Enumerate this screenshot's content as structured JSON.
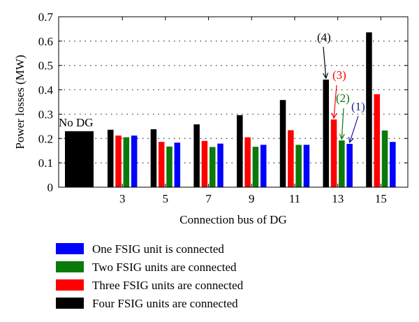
{
  "chart_data": {
    "type": "bar",
    "title": "",
    "xlabel": "Connection bus of DG",
    "ylabel": "Power losses (MW)",
    "ylim": [
      0,
      0.7
    ],
    "yticks": [
      "0",
      "0.1",
      "0.2",
      "0.3",
      "0.4",
      "0.5",
      "0.6",
      "0.7"
    ],
    "grid": "dotted horizontal",
    "baseline": {
      "label": "No DG",
      "value": 0.23
    },
    "categories": [
      "3",
      "5",
      "7",
      "9",
      "11",
      "13",
      "15"
    ],
    "series": [
      {
        "name": "Four FSIG units are connected",
        "color": "#000000",
        "values": [
          0.236,
          0.238,
          0.258,
          0.296,
          0.358,
          0.442,
          0.636
        ]
      },
      {
        "name": "Three FSIG units are connected",
        "color": "#ff0000",
        "values": [
          0.212,
          0.186,
          0.19,
          0.205,
          0.234,
          0.278,
          0.382
        ]
      },
      {
        "name": "Two FSIG units are connected",
        "color": "#0a7a0a",
        "values": [
          0.205,
          0.167,
          0.165,
          0.166,
          0.174,
          0.192,
          0.233
        ]
      },
      {
        "name": "One FSIG unit is connected",
        "color": "#0000ff",
        "values": [
          0.212,
          0.183,
          0.179,
          0.174,
          0.174,
          0.178,
          0.186
        ]
      }
    ],
    "annotations": [
      {
        "text": "(4)",
        "color": "#000000",
        "series": 0,
        "category": "13"
      },
      {
        "text": "(3)",
        "color": "#ff0000",
        "series": 1,
        "category": "13"
      },
      {
        "text": "(2)",
        "color": "#0a7a0a",
        "series": 2,
        "category": "13"
      },
      {
        "text": "(1)",
        "color": "#1a1aa0",
        "series": 3,
        "category": "13"
      }
    ],
    "legend": {
      "placement": "bottom-left",
      "items": [
        {
          "label": "One FSIG unit is connected",
          "color": "#0000ff"
        },
        {
          "label": "Two FSIG units are connected",
          "color": "#0a7a0a"
        },
        {
          "label": "Three FSIG units are connected",
          "color": "#ff0000"
        },
        {
          "label": "Four FSIG units are connected",
          "color": "#000000"
        }
      ]
    }
  }
}
